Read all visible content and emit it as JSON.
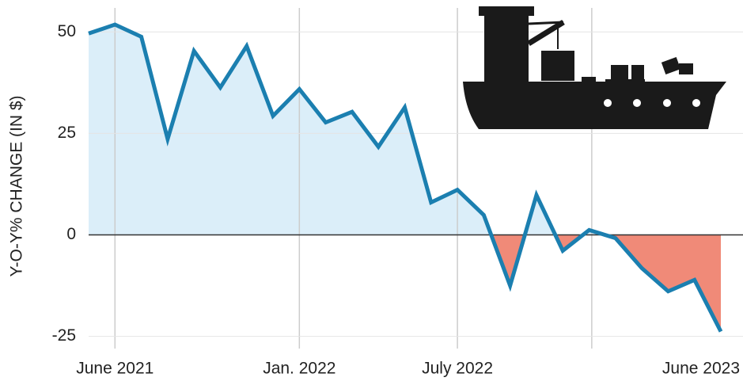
{
  "chart_data": {
    "type": "line",
    "y_label": "Y-O-Y% CHANGE (IN $)",
    "categories": [
      null,
      "June 2021",
      null,
      null,
      null,
      null,
      null,
      null,
      "Jan. 2022",
      null,
      null,
      null,
      null,
      null,
      "July 2022",
      null,
      null,
      null,
      null,
      null,
      null,
      null,
      null,
      null,
      "June 2023"
    ],
    "values": [
      49.6,
      51.8,
      48.8,
      23.6,
      45.3,
      36.3,
      46.5,
      29.3,
      35.9,
      27.7,
      30.3,
      21.7,
      31.4,
      8.0,
      11.1,
      4.9,
      -12.5,
      9.8,
      -3.9,
      1.2,
      -0.8,
      -8.2,
      -13.9,
      -11.1,
      -23.8
    ],
    "color": "#1b7fb0",
    "positive_fill": "#dbeef9",
    "negative_fill": "#f08a78",
    "ylim": [
      -28,
      52
    ],
    "yticks": [
      -25,
      0,
      25,
      50
    ],
    "grid": true
  }
}
